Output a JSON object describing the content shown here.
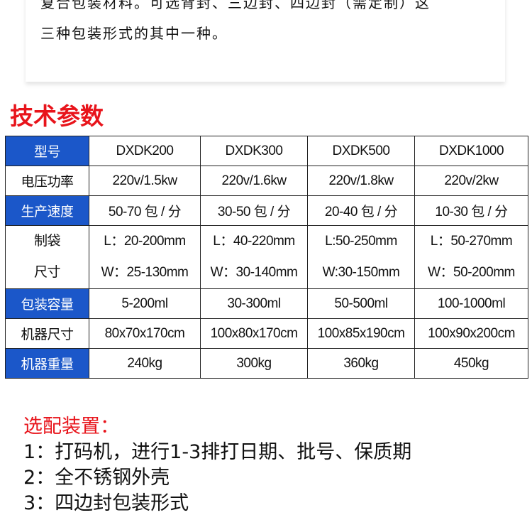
{
  "intro": {
    "line1": "复合包装材料。可选背封、三边封、四边封（需定制）这",
    "line2": "三种包装形式的其中一种。"
  },
  "section_title": "技术参数",
  "table": {
    "header": {
      "label": "型号",
      "values": [
        "DXDK200",
        "DXDK300",
        "DXDK500",
        "DXDK1000"
      ]
    },
    "rows": [
      {
        "label": "电压功率",
        "values": [
          "220v/1.5kw",
          "220v/1.6kw",
          "220v/1.8kw",
          "220v/2kw"
        ]
      },
      {
        "label": "生产速度",
        "values": [
          "50-70 包 / 分",
          "30-50 包 / 分",
          "20-40 包 / 分",
          "10-30 包 / 分"
        ]
      },
      {
        "label": [
          "制袋",
          "尺寸"
        ],
        "values": [
          [
            "L：20-200mm",
            "W：25-130mm"
          ],
          [
            "L：40-220mm",
            "W：30-140mm"
          ],
          [
            "L:50-250mm",
            "W:30-150mm"
          ],
          [
            "L：50-270mm",
            "W：50-200mm"
          ]
        ]
      },
      {
        "label": "包装容量",
        "values": [
          "5-200ml",
          "30-300ml",
          "50-500ml",
          "100-1000ml"
        ]
      },
      {
        "label": "机器尺寸",
        "values": [
          "80x70x170cm",
          "100x80x170cm",
          "100x85x190cm",
          "100x90x200cm"
        ]
      },
      {
        "label": "机器重量",
        "values": [
          "240kg",
          "300kg",
          "360kg",
          "450kg"
        ]
      }
    ]
  },
  "options": {
    "title": "选配装置：",
    "items": [
      "1：打码机，进行1-3排打日期、批号、保质期",
      "2：全不锈钢外壳",
      "3：四边封包装形式"
    ]
  },
  "colors": {
    "accent_red": "#e8141b",
    "header_blue": "#1b57c9"
  }
}
